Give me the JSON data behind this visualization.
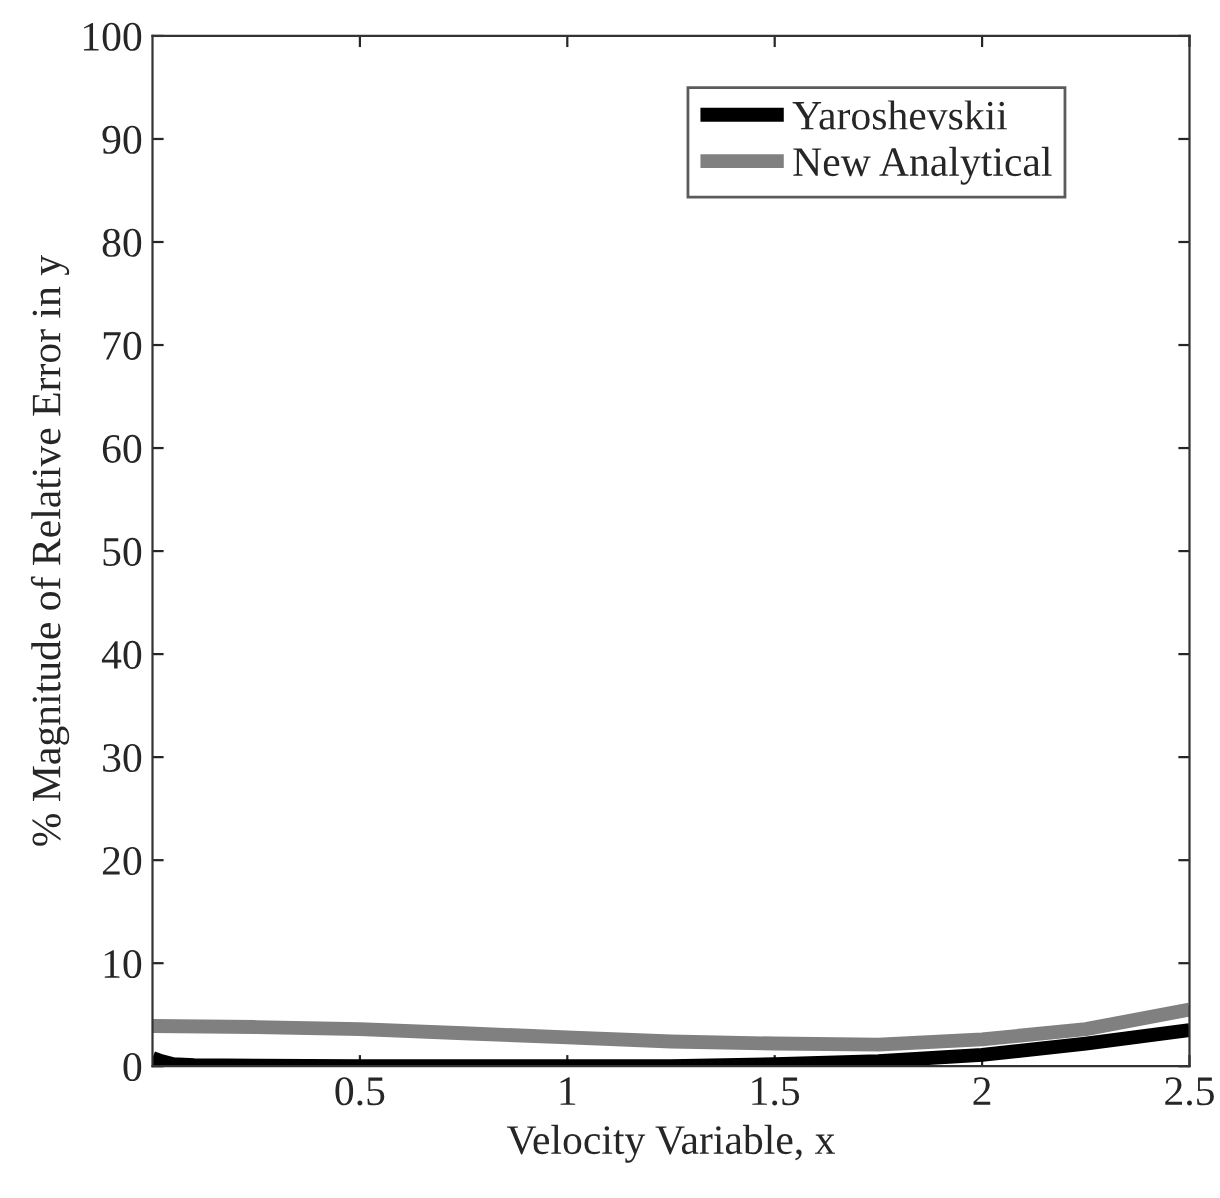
{
  "chart_data": {
    "type": "line",
    "xlabel": "Velocity Variable, x",
    "ylabel": "% Magnitude of Relative Error in y",
    "xlim": [
      0,
      2.5
    ],
    "ylim": [
      0,
      100
    ],
    "xticks": [
      0.5,
      1,
      1.5,
      2,
      2.5
    ],
    "yticks": [
      0,
      10,
      20,
      30,
      40,
      50,
      60,
      70,
      80,
      90,
      100
    ],
    "grid": false,
    "legend": "top right",
    "line_style": "solid",
    "series": [
      {
        "name": "Yaroshevskii",
        "color": "#000000",
        "x": [
          0,
          0.02,
          0.05,
          0.1,
          0.25,
          0.5,
          0.75,
          1,
          1.25,
          1.5,
          1.75,
          2,
          2.25,
          2.5
        ],
        "values": [
          0.8,
          0.5,
          0.2,
          0.1,
          0.05,
          0,
          0,
          0,
          0,
          0.2,
          0.5,
          1.1,
          2.2,
          3.5
        ]
      },
      {
        "name": "New Analytical",
        "color": "#808080",
        "x": [
          0,
          0.25,
          0.5,
          0.75,
          1,
          1.25,
          1.5,
          1.75,
          2,
          2.25,
          2.5
        ],
        "values": [
          3.9,
          3.8,
          3.6,
          3.2,
          2.8,
          2.4,
          2.2,
          2.1,
          2.6,
          3.6,
          5.5
        ]
      }
    ]
  }
}
